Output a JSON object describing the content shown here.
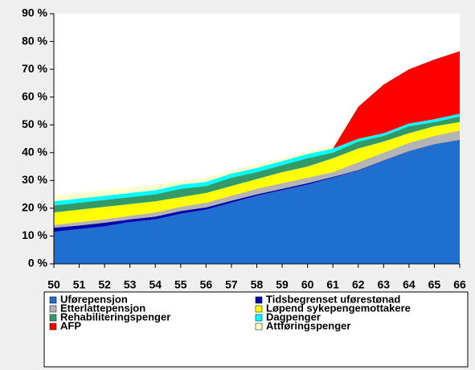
{
  "chart_data": {
    "type": "stacked_area",
    "categories": [
      50,
      51,
      52,
      53,
      54,
      55,
      56,
      57,
      58,
      59,
      60,
      61,
      62,
      63,
      64,
      65,
      66
    ],
    "ylim": [
      0,
      90
    ],
    "yticks": [
      {
        "value": 0,
        "label": "0 %"
      },
      {
        "value": 10,
        "label": "10 %"
      },
      {
        "value": 20,
        "label": "20 %"
      },
      {
        "value": 30,
        "label": "30 %"
      },
      {
        "value": 40,
        "label": "40 %"
      },
      {
        "value": 50,
        "label": "50 %"
      },
      {
        "value": 60,
        "label": "60 %"
      },
      {
        "value": 70,
        "label": "70 %"
      },
      {
        "value": 80,
        "label": "80 %"
      },
      {
        "value": 90,
        "label": "90 %"
      }
    ],
    "series": [
      {
        "name": "Uførepensjon",
        "color": "#1f6fd0",
        "values": [
          11.5,
          12.5,
          13.5,
          15,
          16,
          18,
          19.5,
          22,
          24.5,
          26.5,
          28.5,
          31,
          33.5,
          37,
          40.5,
          43,
          44.5
        ]
      },
      {
        "name": "Tidsbegrenset uførestønad",
        "color": "#0000b0",
        "values": [
          1.5,
          1.3,
          1.3,
          1,
          1,
          1,
          0.8,
          0.7,
          0.5,
          0.5,
          0.5,
          0.3,
          0.2,
          0.2,
          0.1,
          0.1,
          0.1
        ]
      },
      {
        "name": "Etterlattepensjon",
        "color": "#b4b4b4",
        "values": [
          1,
          1.2,
          1.2,
          1.3,
          1.5,
          1.5,
          1.7,
          1.8,
          2,
          2,
          2,
          1.7,
          2.8,
          2.8,
          2.9,
          2.9,
          3.4
        ]
      },
      {
        "name": "Løpend sykepengemottakere",
        "color": "#ffff00",
        "values": [
          4.5,
          4.5,
          4.5,
          4.2,
          4,
          3.5,
          3.5,
          3.5,
          3.5,
          4,
          4,
          5,
          5,
          4,
          3.5,
          3.5,
          3
        ]
      },
      {
        "name": "Rehabiliteringspenger",
        "color": "#339966",
        "values": [
          2.5,
          2.5,
          2.5,
          2.5,
          2.5,
          3,
          2.5,
          3,
          2.5,
          2.5,
          3,
          2,
          2.5,
          2,
          2.5,
          1.5,
          2
        ]
      },
      {
        "name": "Dagpenger",
        "color": "#00ffff",
        "values": [
          1.5,
          1.5,
          1.5,
          1.5,
          1.5,
          1.5,
          1.5,
          1.5,
          1.5,
          1.5,
          1.5,
          1.5,
          1,
          1,
          1,
          1,
          1
        ]
      },
      {
        "name": "AFP",
        "color": "#ff0000",
        "values": [
          0,
          0,
          0,
          0,
          0,
          0,
          0,
          0,
          0,
          0,
          0,
          0,
          11.5,
          17.5,
          19.5,
          21.5,
          22.5
        ]
      },
      {
        "name": "Attføringspenger",
        "color": "#ffffcc",
        "values": [
          2,
          2,
          2,
          2,
          2,
          1.5,
          1.5,
          1,
          1.5,
          1,
          1,
          1,
          0,
          0,
          0,
          0,
          0
        ]
      }
    ]
  }
}
